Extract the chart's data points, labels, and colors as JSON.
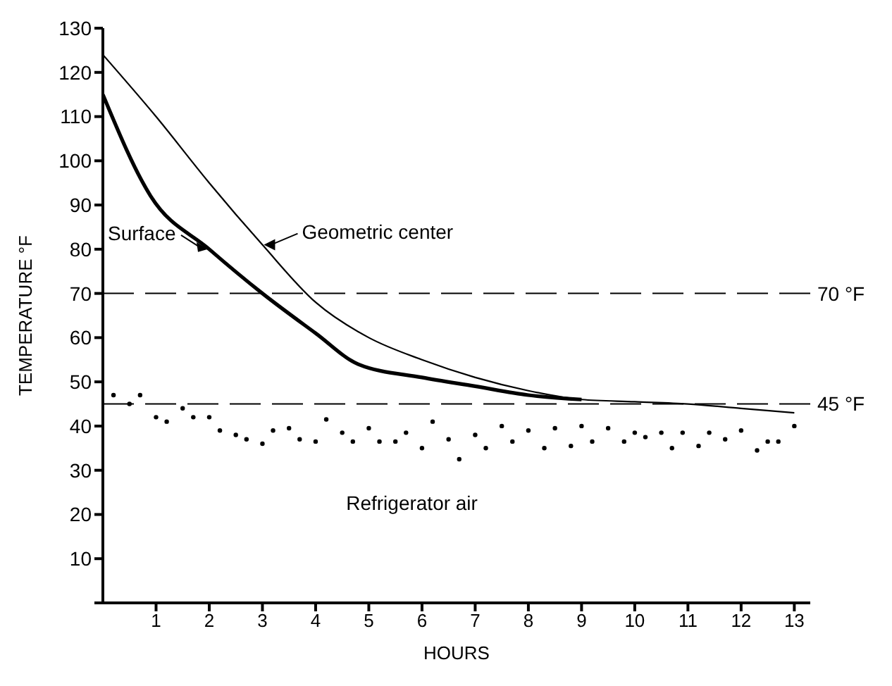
{
  "chart_data": {
    "type": "line",
    "xlabel": "HOURS",
    "ylabel": "TEMPERATURE °F",
    "xlim": [
      0,
      13.3
    ],
    "xticks": [
      1,
      2,
      3,
      4,
      5,
      6,
      7,
      8,
      9,
      10,
      11,
      12,
      13
    ],
    "ylim": [
      0,
      130
    ],
    "yticks": [
      {
        "value": 0,
        "label": null
      },
      10,
      20,
      30,
      40,
      50,
      60,
      70,
      80,
      90,
      100,
      110,
      120,
      130
    ],
    "series": [
      {
        "name": "Surface",
        "color": "#000000",
        "x": [
          0,
          0.9,
          2,
          3,
          4,
          4.8,
          6,
          7,
          8,
          9
        ],
        "values": [
          115,
          92,
          80,
          70,
          61,
          54,
          51,
          49,
          47,
          46
        ]
      },
      {
        "name": "Geometric center",
        "color": "#000000",
        "x": [
          0,
          1,
          2,
          3,
          4,
          5,
          6,
          7,
          8,
          9,
          10,
          11,
          12,
          13
        ],
        "values": [
          124,
          110,
          95,
          81,
          68,
          60,
          55,
          51,
          48,
          46,
          45.5,
          45,
          44,
          43
        ]
      },
      {
        "name": "Refrigerator air",
        "type": "scatter",
        "color": "#000000",
        "x": [
          0.2,
          0.5,
          0.7,
          1,
          1.2,
          1.5,
          1.7,
          2,
          2.2,
          2.5,
          2.7,
          3,
          3.2,
          3.5,
          3.7,
          4,
          4.2,
          4.5,
          4.7,
          5,
          5.2,
          5.5,
          5.7,
          6,
          6.2,
          6.5,
          6.7,
          7,
          7.2,
          7.5,
          7.7,
          8,
          8.3,
          8.5,
          8.8,
          9,
          9.2,
          9.5,
          9.8,
          10,
          10.2,
          10.5,
          10.7,
          10.9,
          11.2,
          11.4,
          11.7,
          12,
          12.3,
          12.5,
          12.7,
          13
        ],
        "values": [
          47,
          45,
          47,
          42,
          41,
          44,
          42,
          42,
          39,
          38,
          37,
          36,
          39,
          39.5,
          37,
          36.5,
          41.5,
          38.5,
          36.5,
          39.5,
          36.5,
          36.5,
          38.5,
          35,
          41,
          37,
          32.5,
          38,
          35,
          40,
          36.5,
          39,
          35,
          39.5,
          35.5,
          40,
          36.5,
          39.5,
          36.5,
          38.5,
          37.5,
          38.5,
          35,
          38.5,
          35.5,
          38.5,
          37,
          39,
          34.5,
          36.5,
          36.5,
          40
        ]
      }
    ],
    "ref_lines": [
      {
        "axis": "y",
        "value": 70,
        "label": "70 °F",
        "line_style": "dashed"
      },
      {
        "axis": "y",
        "value": 45,
        "label": "45 °F",
        "line_style": "dashed"
      }
    ]
  }
}
